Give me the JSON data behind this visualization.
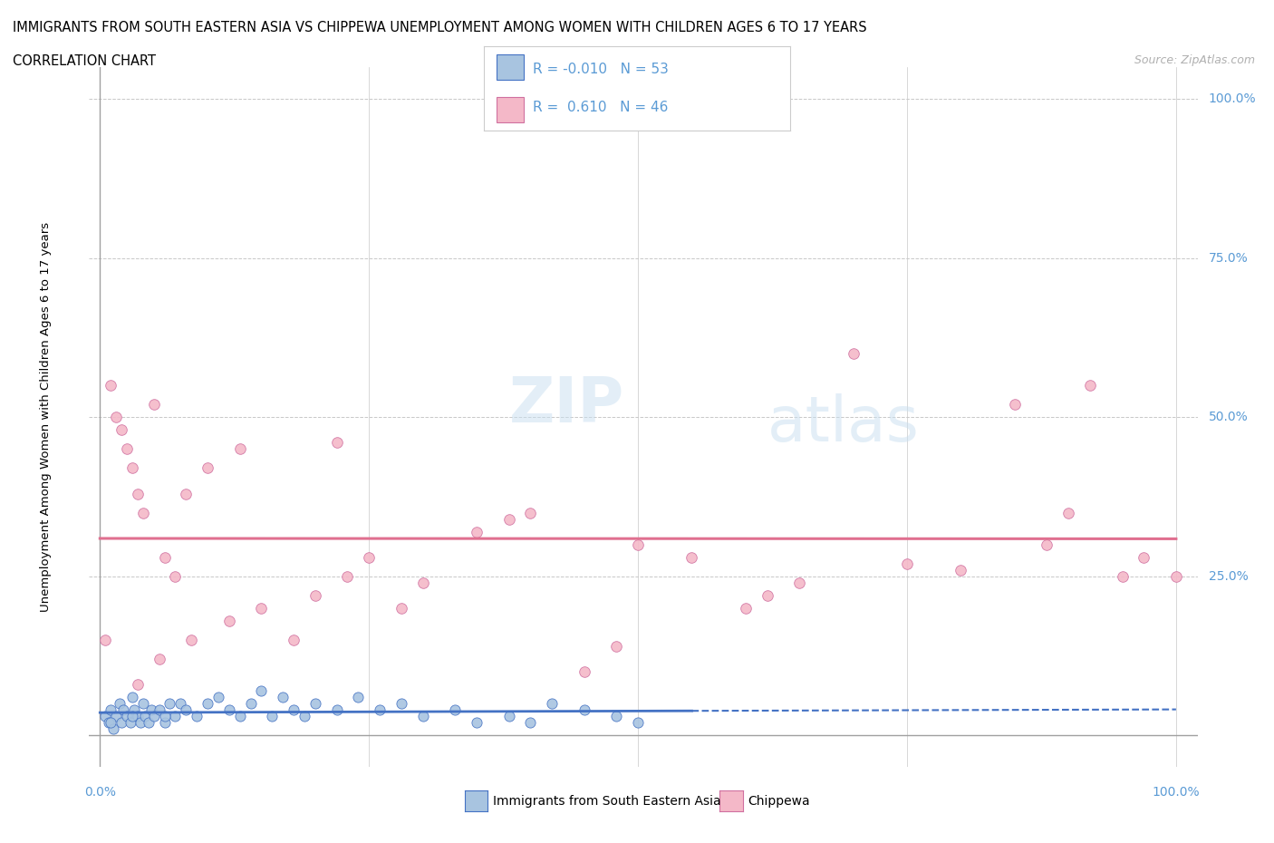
{
  "title_line1": "IMMIGRANTS FROM SOUTH EASTERN ASIA VS CHIPPEWA UNEMPLOYMENT AMONG WOMEN WITH CHILDREN AGES 6 TO 17 YEARS",
  "title_line2": "CORRELATION CHART",
  "source_text": "Source: ZipAtlas.com",
  "ylabel": "Unemployment Among Women with Children Ages 6 to 17 years",
  "color_blue": "#a8c4e0",
  "color_pink": "#f4b8c8",
  "color_line_blue": "#4472c4",
  "color_line_pink": "#e07090",
  "color_axis_label": "#5b9bd5",
  "legend_r1": "R = -0.010",
  "legend_n1": "N = 53",
  "legend_r2": "R =  0.610",
  "legend_n2": "N = 46",
  "legend_label1": "Immigrants from South Eastern Asia",
  "legend_label2": "Chippewa",
  "grid_color": "#c8c8c8",
  "bg_color": "#ffffff",
  "blue_x": [
    0.5,
    0.8,
    1.0,
    1.2,
    1.5,
    1.8,
    2.0,
    2.2,
    2.5,
    2.8,
    3.0,
    3.2,
    3.5,
    3.8,
    4.0,
    4.2,
    4.5,
    4.8,
    5.0,
    5.5,
    6.0,
    6.5,
    7.0,
    7.5,
    8.0,
    9.0,
    10.0,
    11.0,
    12.0,
    13.0,
    14.0,
    15.0,
    16.0,
    17.0,
    18.0,
    19.0,
    20.0,
    22.0,
    24.0,
    26.0,
    28.0,
    30.0,
    33.0,
    35.0,
    38.0,
    40.0,
    42.0,
    45.0,
    48.0,
    50.0,
    1.0,
    3.0,
    6.0
  ],
  "blue_y": [
    3,
    2,
    4,
    1,
    3,
    5,
    2,
    4,
    3,
    2,
    6,
    4,
    3,
    2,
    5,
    3,
    2,
    4,
    3,
    4,
    2,
    5,
    3,
    5,
    4,
    3,
    5,
    6,
    4,
    3,
    5,
    7,
    3,
    6,
    4,
    3,
    5,
    4,
    6,
    4,
    5,
    3,
    4,
    2,
    3,
    2,
    5,
    4,
    3,
    2,
    2,
    3,
    3
  ],
  "pink_x": [
    0.5,
    1.0,
    1.5,
    2.0,
    2.5,
    3.0,
    3.5,
    4.0,
    5.0,
    6.0,
    7.0,
    8.0,
    10.0,
    12.0,
    15.0,
    18.0,
    20.0,
    23.0,
    25.0,
    28.0,
    30.0,
    35.0,
    40.0,
    45.0,
    50.0,
    55.0,
    60.0,
    65.0,
    70.0,
    75.0,
    80.0,
    85.0,
    88.0,
    90.0,
    92.0,
    95.0,
    97.0,
    100.0,
    3.5,
    5.5,
    8.5,
    13.0,
    22.0,
    38.0,
    48.0,
    62.0
  ],
  "pink_y": [
    15,
    55,
    50,
    48,
    45,
    42,
    38,
    35,
    52,
    28,
    25,
    38,
    42,
    18,
    20,
    15,
    22,
    25,
    28,
    20,
    24,
    32,
    35,
    10,
    30,
    28,
    20,
    24,
    60,
    27,
    26,
    52,
    30,
    35,
    55,
    25,
    28,
    25,
    8,
    12,
    15,
    45,
    46,
    34,
    14,
    22
  ],
  "xlim": [
    0,
    100
  ],
  "ylim": [
    0,
    100
  ],
  "blue_line_solid_end": 55,
  "pink_line_start": 0,
  "pink_line_end": 100
}
